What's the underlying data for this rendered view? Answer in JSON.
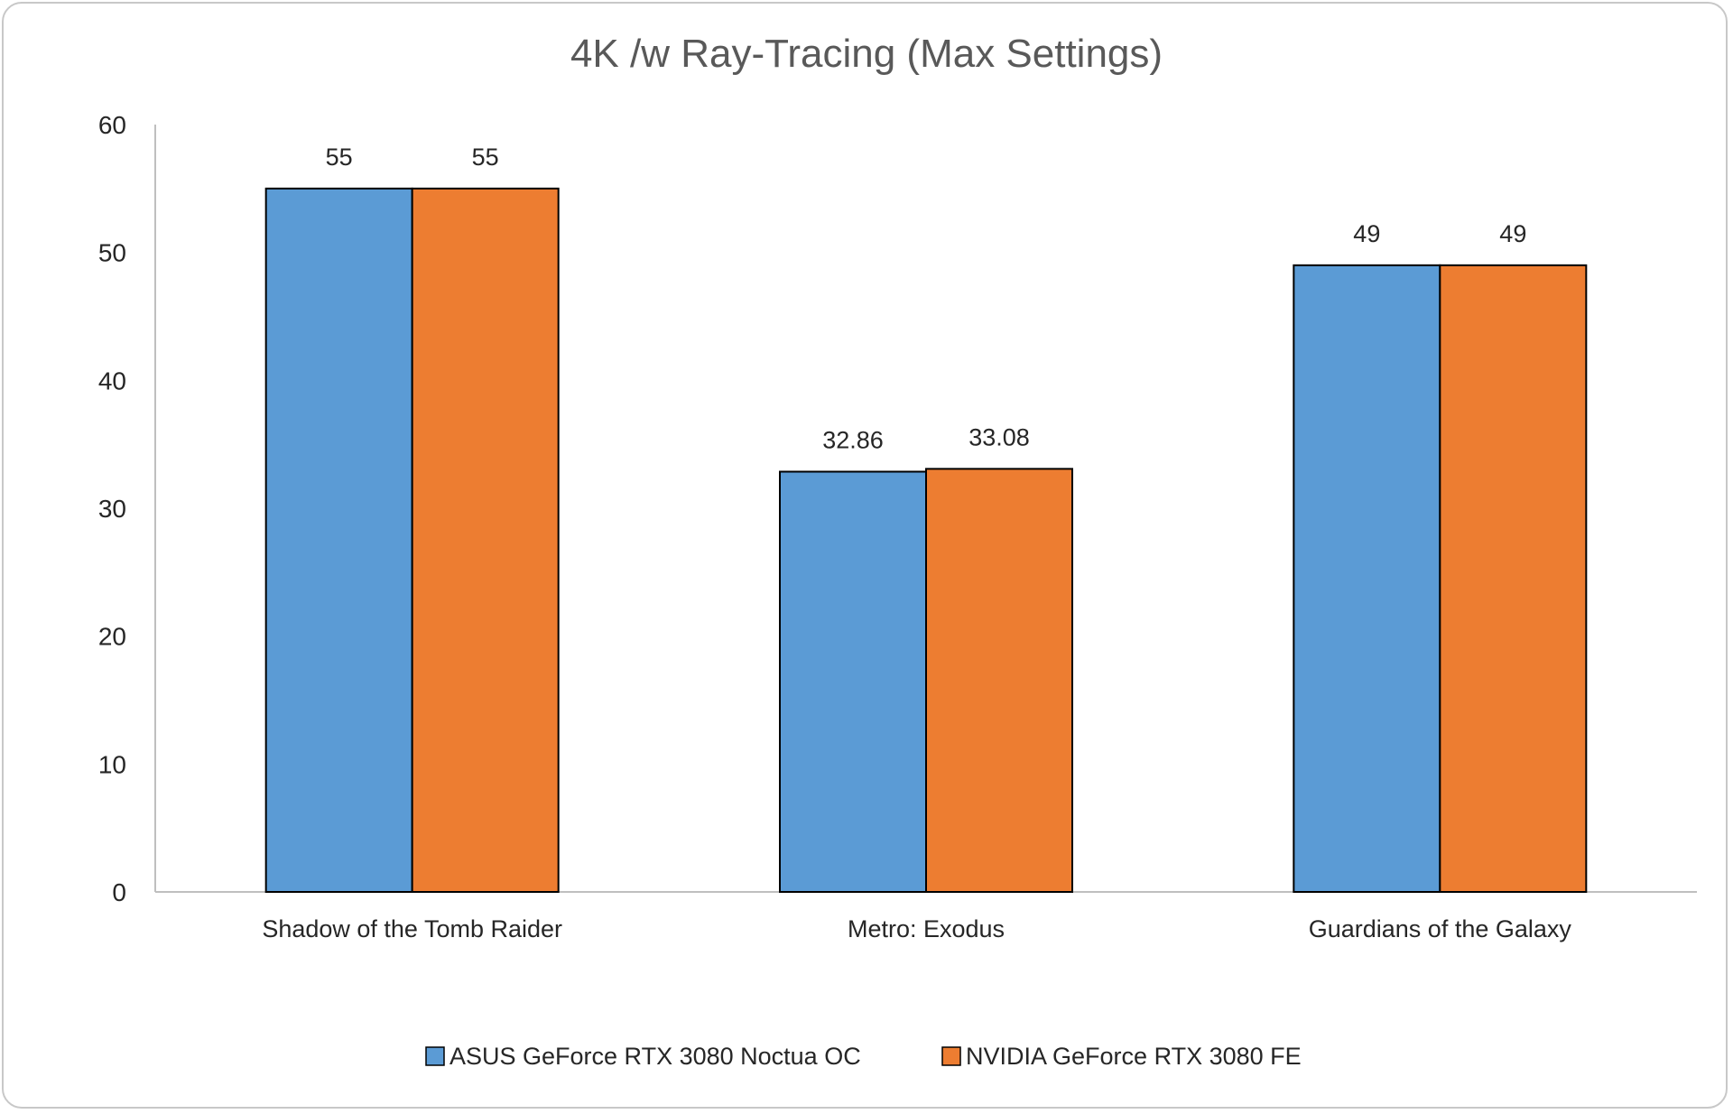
{
  "chart_data": {
    "type": "bar",
    "title": "4K /w Ray-Tracing (Max Settings)",
    "xlabel": "",
    "ylabel": "",
    "ylim": [
      0,
      60
    ],
    "yticks": [
      0,
      10,
      20,
      30,
      40,
      50,
      60
    ],
    "grid": false,
    "legend_position": "bottom",
    "categories": [
      "Shadow of the Tomb Raider",
      "Metro: Exodus",
      "Guardians of the Galaxy"
    ],
    "series": [
      {
        "name": "ASUS GeForce RTX 3080 Noctua OC",
        "color": "#5b9bd5",
        "values": [
          55,
          32.86,
          49
        ],
        "labels": [
          "55",
          "32.86",
          "49"
        ]
      },
      {
        "name": "NVIDIA GeForce RTX 3080 FE",
        "color": "#ed7d31",
        "values": [
          55,
          33.08,
          49
        ],
        "labels": [
          "55",
          "33.08",
          "49"
        ]
      }
    ]
  }
}
